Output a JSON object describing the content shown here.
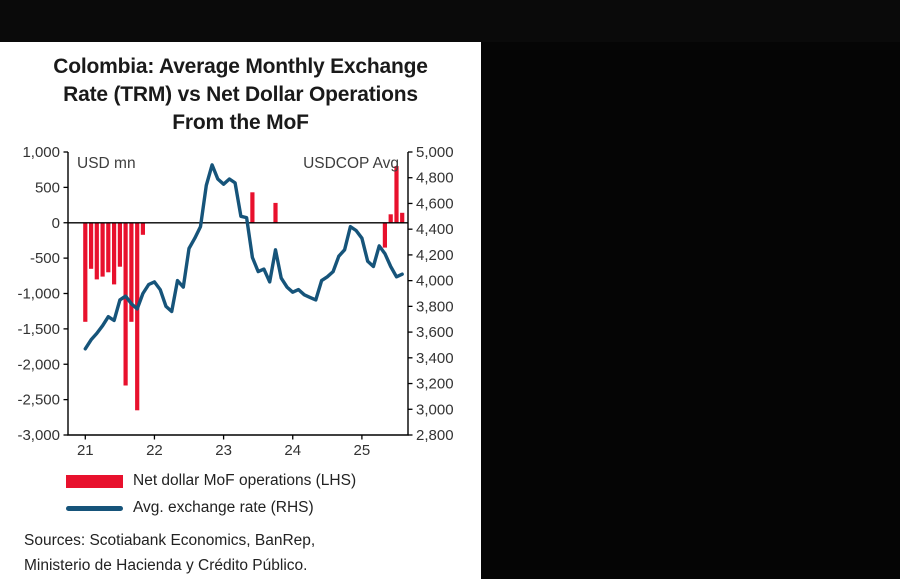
{
  "chart": {
    "title_lines": [
      "Colombia: Average Monthly Exchange",
      "Rate (TRM) vs Net Dollar Operations",
      "From the MoF"
    ],
    "legend": [
      {
        "type": "bar",
        "color": "#e8112d",
        "label": "Net dollar MoF operations (LHS)"
      },
      {
        "type": "line",
        "color": "#16547a",
        "label": "Avg. exchange rate (RHS)"
      }
    ],
    "sources_lines": [
      "Sources: Scotiabank Economics, BanRep,",
      "Ministerio de Hacienda y Crédito Público."
    ]
  },
  "chart_data": {
    "type": "bar+line",
    "title": "Colombia: Average Monthly Exchange Rate (TRM) vs Net Dollar Operations From the MoF",
    "x_unit": "month",
    "x_domain": [
      -3,
      56
    ],
    "grid": false,
    "annotations": [
      {
        "text": "USD mn",
        "pos": "top-left"
      },
      {
        "text": "USDCOP Avg",
        "pos": "top-right"
      }
    ],
    "categories": [
      "2021-01",
      "2021-02",
      "2021-03",
      "2021-04",
      "2021-05",
      "2021-06",
      "2021-07",
      "2021-08",
      "2021-09",
      "2021-10",
      "2021-11",
      "2021-12",
      "2022-01",
      "2022-02",
      "2022-03",
      "2022-04",
      "2022-05",
      "2022-06",
      "2022-07",
      "2022-08",
      "2022-09",
      "2022-10",
      "2022-11",
      "2022-12",
      "2023-01",
      "2023-02",
      "2023-03",
      "2023-04",
      "2023-05",
      "2023-06",
      "2023-07",
      "2023-08",
      "2023-09",
      "2023-10",
      "2023-11",
      "2023-12",
      "2024-01",
      "2024-02",
      "2024-03",
      "2024-04",
      "2024-05",
      "2024-06",
      "2024-07",
      "2024-08",
      "2024-09",
      "2024-10",
      "2024-11",
      "2024-12",
      "2025-01",
      "2025-02",
      "2025-03",
      "2025-04",
      "2025-05",
      "2025-06",
      "2025-07",
      "2025-08"
    ],
    "series": [
      {
        "name": "Net dollar MoF operations (LHS)",
        "type": "bar",
        "axis": "left",
        "color": "#e8112d",
        "values": [
          -1400,
          -650,
          -800,
          -760,
          -700,
          -870,
          -620,
          -2300,
          -1400,
          -2650,
          -170,
          0,
          0,
          0,
          0,
          0,
          0,
          0,
          0,
          0,
          0,
          0,
          0,
          0,
          0,
          0,
          0,
          0,
          0,
          430,
          0,
          0,
          0,
          280,
          0,
          0,
          0,
          0,
          0,
          0,
          0,
          0,
          0,
          0,
          0,
          0,
          0,
          0,
          0,
          0,
          0,
          0,
          -350,
          120,
          800,
          140
        ]
      },
      {
        "name": "Avg. exchange rate (RHS)",
        "type": "line",
        "axis": "right",
        "color": "#16547a",
        "values": [
          3470,
          3540,
          3590,
          3650,
          3720,
          3690,
          3850,
          3880,
          3820,
          3780,
          3900,
          3970,
          3990,
          3930,
          3800,
          3760,
          4000,
          3950,
          4250,
          4330,
          4420,
          4740,
          4900,
          4790,
          4750,
          4790,
          4760,
          4500,
          4490,
          4180,
          4070,
          4090,
          3990,
          4240,
          4020,
          3950,
          3910,
          3930,
          3890,
          3870,
          3850,
          4000,
          4030,
          4070,
          4190,
          4240,
          4420,
          4390,
          4330,
          4150,
          4110,
          4270,
          4210,
          4110,
          4030,
          4050
        ]
      }
    ],
    "left_axis": {
      "min": -3000,
      "max": 1000,
      "tick_step": 500,
      "ticks": [
        1000,
        500,
        0,
        -500,
        -1000,
        -1500,
        -2000,
        -2500,
        -3000
      ]
    },
    "right_axis": {
      "min": 2800,
      "max": 5000,
      "tick_step": 200,
      "ticks": [
        5000,
        4800,
        4600,
        4400,
        4200,
        4000,
        3800,
        3600,
        3400,
        3200,
        3000,
        2800
      ]
    },
    "x_ticks": [
      {
        "index": 0,
        "label": "21"
      },
      {
        "index": 12,
        "label": "22"
      },
      {
        "index": 24,
        "label": "23"
      },
      {
        "index": 36,
        "label": "24"
      },
      {
        "index": 48,
        "label": "25"
      }
    ],
    "legend_position": "bottom"
  }
}
